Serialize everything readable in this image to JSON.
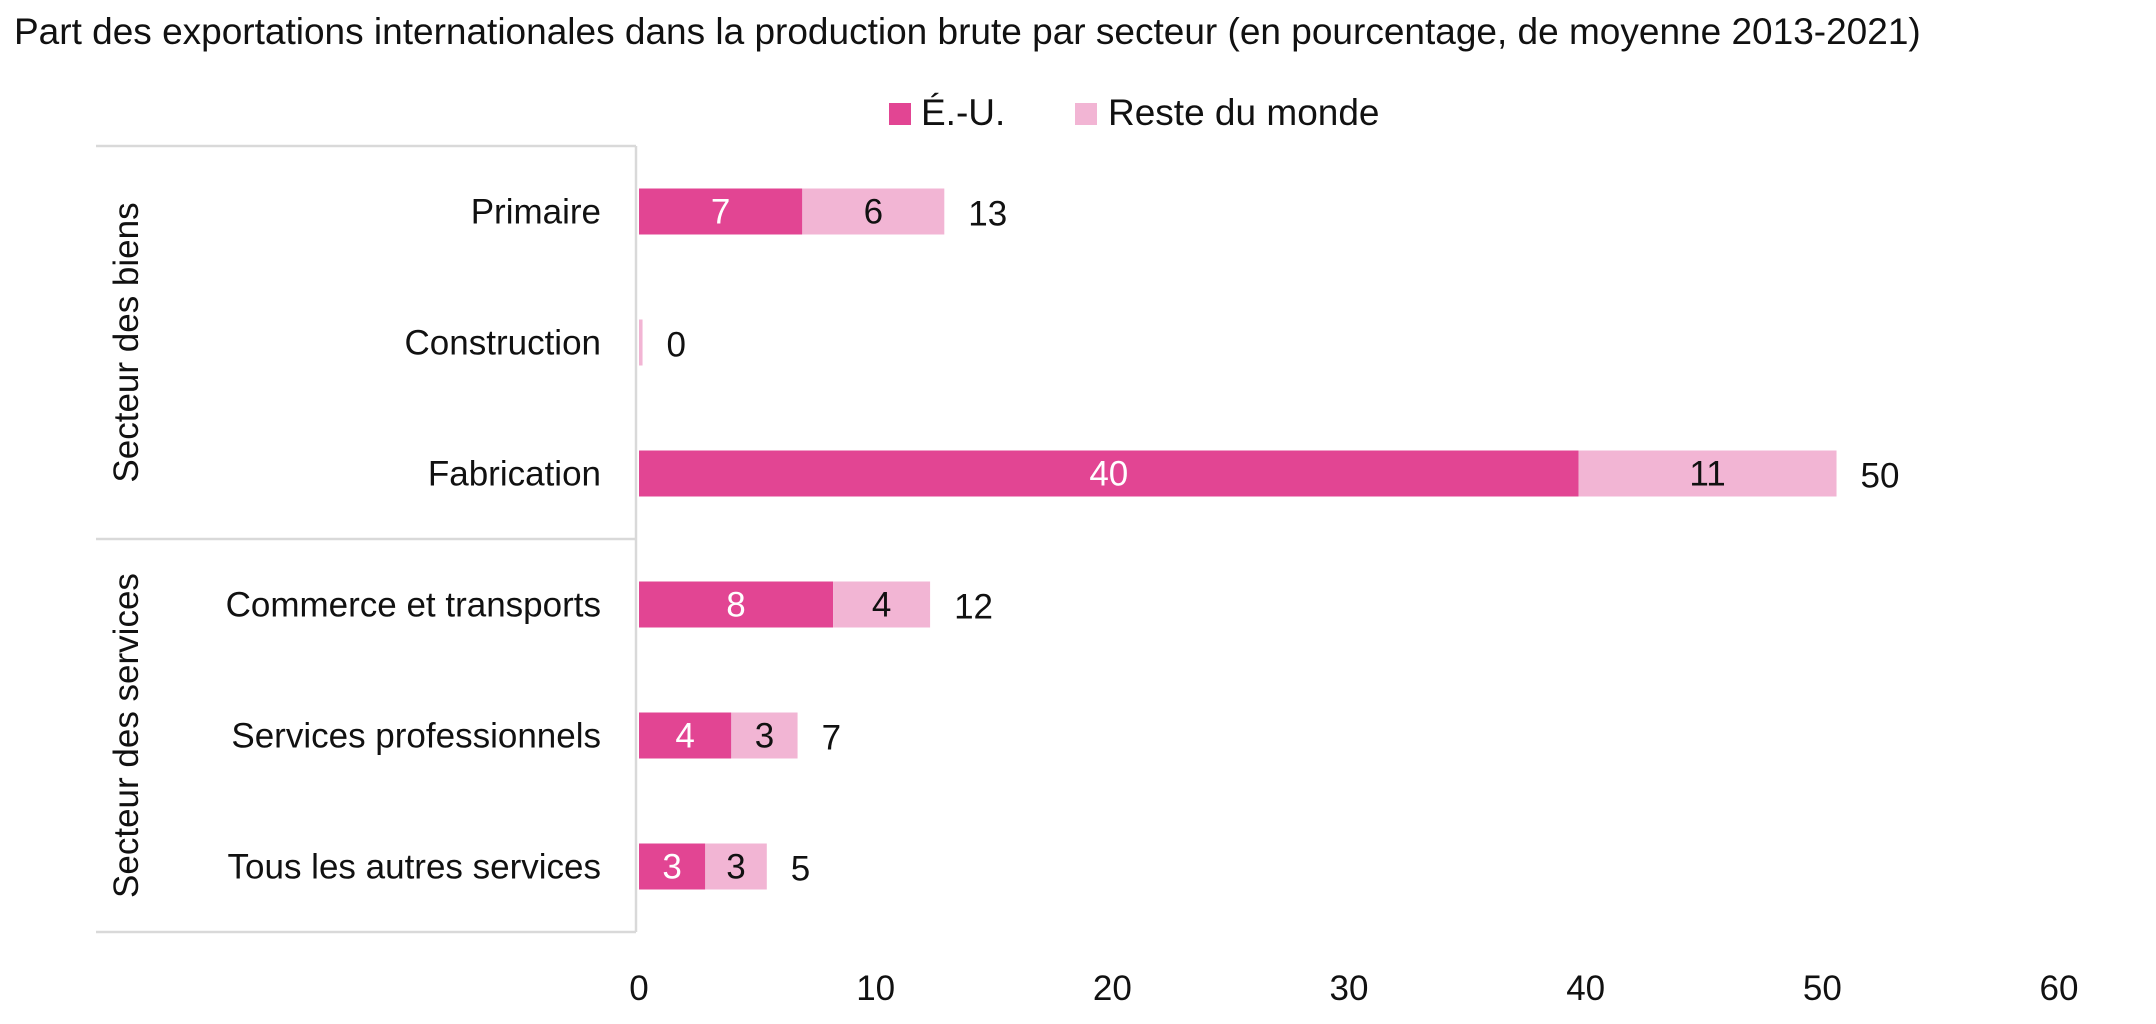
{
  "chart_data": {
    "type": "bar",
    "orientation": "horizontal",
    "stacked": true,
    "title": "Part des exportations internationales dans la production brute par secteur (en pourcentage, de moyenne 2013-2021)",
    "legend_position": "top-center",
    "groups": [
      {
        "label": "Secteur des biens",
        "categories": [
          "Primaire",
          "Construction",
          "Fabrication"
        ]
      },
      {
        "label": "Secteur des services",
        "categories": [
          "Commerce et transports",
          "Services professionnels",
          "Tous les autres services"
        ]
      }
    ],
    "categories": [
      "Primaire",
      "Construction",
      "Fabrication",
      "Commerce et transports",
      "Services professionnels",
      "Tous les autres services"
    ],
    "series": [
      {
        "name": "É.-U.",
        "color": "#e24593",
        "label_color": "#ffffff",
        "values": [
          6.9,
          0.0,
          39.7,
          8.2,
          3.9,
          2.8
        ],
        "labels": [
          "7",
          "",
          "40",
          "8",
          "4",
          "3"
        ]
      },
      {
        "name": "Reste du monde",
        "color": "#f2b5d4",
        "label_color": "#111111",
        "values": [
          6.0,
          0.15,
          10.9,
          4.1,
          2.8,
          2.6
        ],
        "labels": [
          "6",
          "",
          "11",
          "4",
          "3",
          "3"
        ]
      }
    ],
    "totals": [
      "13",
      "0",
      "50",
      "12",
      "7",
      "5"
    ],
    "xlim": [
      0,
      60
    ],
    "xticks": [
      0,
      10,
      20,
      30,
      40,
      50,
      60
    ],
    "xtick_labels": [
      "0",
      "10",
      "20",
      "30",
      "40",
      "50",
      "60"
    ],
    "grid": false
  }
}
